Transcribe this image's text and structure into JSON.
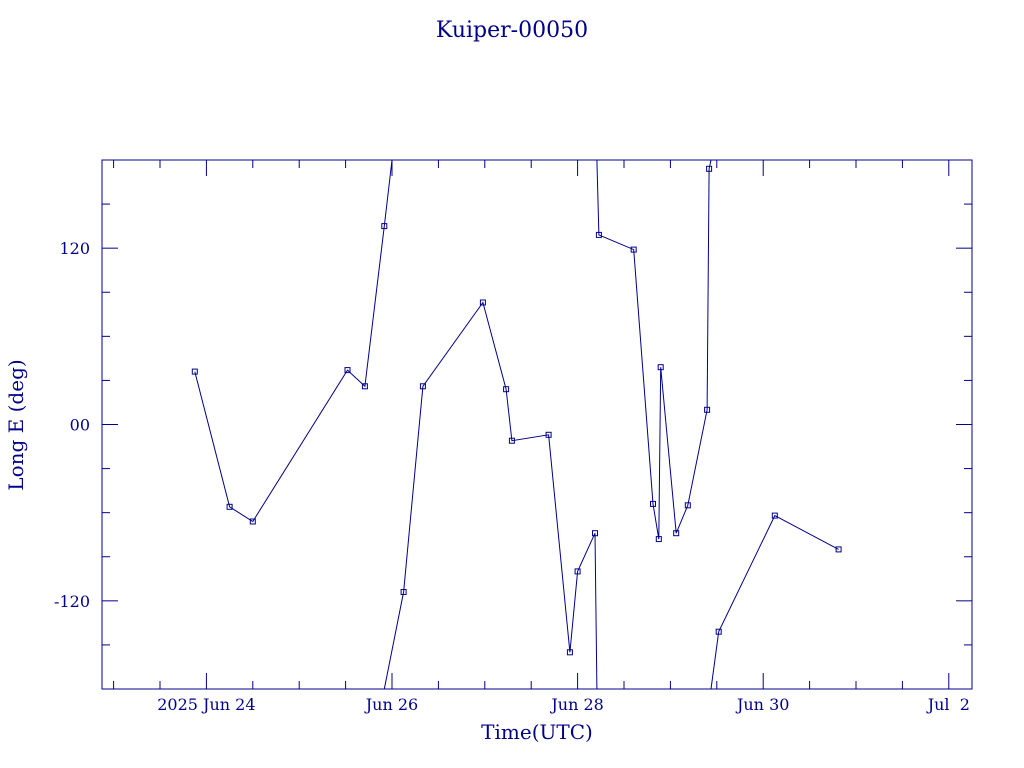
{
  "chart_data": {
    "type": "line",
    "title": "Kuiper-00050",
    "xlabel": "Time(UTC)",
    "ylabel": "Long E (deg)",
    "x_range": [
      "2025-06-22T21:00",
      "2025-07-02T06:00"
    ],
    "ylim": [
      -180,
      180
    ],
    "x_ticks": [
      {
        "t": "2025-06-24T00:00",
        "label": "2025 Jun 24"
      },
      {
        "t": "2025-06-26T00:00",
        "label": "Jun 26"
      },
      {
        "t": "2025-06-28T00:00",
        "label": "Jun 28"
      },
      {
        "t": "2025-06-30T00:00",
        "label": "Jun 30"
      },
      {
        "t": "2025-07-02T00:00",
        "label": "Jul  2"
      }
    ],
    "x_minor_step_hours": 12,
    "y_ticks": [
      {
        "v": 120,
        "label": "120"
      },
      {
        "v": 0,
        "label": "00"
      },
      {
        "v": -120,
        "label": "-120"
      }
    ],
    "y_minor_step": 30,
    "grid": false,
    "series": [
      {
        "color": "#00008b",
        "points": [
          {
            "t": "2025-06-23T21:00",
            "v": 36
          },
          {
            "t": "2025-06-24T06:00",
            "v": -56
          },
          {
            "t": "2025-06-24T12:00",
            "v": -66
          },
          {
            "t": "2025-06-25T12:30",
            "v": 37
          },
          {
            "t": "2025-06-25T17:00",
            "v": 26
          },
          {
            "t": "2025-06-25T22:00",
            "v": 135
          },
          {
            "t": "2025-06-26T00:00",
            "v": 180,
            "break_after": true
          },
          {
            "t": "2025-06-25T22:00",
            "v": -180
          },
          {
            "t": "2025-06-26T03:00",
            "v": -114
          },
          {
            "t": "2025-06-26T08:00",
            "v": 26
          },
          {
            "t": "2025-06-26T23:30",
            "v": 83
          },
          {
            "t": "2025-06-27T05:30",
            "v": 24
          },
          {
            "t": "2025-06-27T07:00",
            "v": -11
          },
          {
            "t": "2025-06-27T16:30",
            "v": -7
          },
          {
            "t": "2025-06-27T22:00",
            "v": -155
          },
          {
            "t": "2025-06-28T00:00",
            "v": -100
          },
          {
            "t": "2025-06-28T04:30",
            "v": -74
          },
          {
            "t": "2025-06-28T05:00",
            "v": -180,
            "break_after": true
          },
          {
            "t": "2025-06-28T05:00",
            "v": 180
          },
          {
            "t": "2025-06-28T05:30",
            "v": 129
          },
          {
            "t": "2025-06-28T14:30",
            "v": 119
          },
          {
            "t": "2025-06-28T19:30",
            "v": -54
          },
          {
            "t": "2025-06-28T21:00",
            "v": -78
          },
          {
            "t": "2025-06-28T21:30",
            "v": 39
          },
          {
            "t": "2025-06-29T01:30",
            "v": -74
          },
          {
            "t": "2025-06-29T04:30",
            "v": -55
          },
          {
            "t": "2025-06-29T09:30",
            "v": 10
          },
          {
            "t": "2025-06-29T10:00",
            "v": 174
          },
          {
            "t": "2025-06-29T10:30",
            "v": 180,
            "break_after": true
          },
          {
            "t": "2025-06-29T10:30",
            "v": -180
          },
          {
            "t": "2025-06-29T12:30",
            "v": -141
          },
          {
            "t": "2025-06-30T03:00",
            "v": -62
          },
          {
            "t": "2025-06-30T19:30",
            "v": -85
          }
        ],
        "marker_indices": [
          0,
          1,
          2,
          3,
          4,
          5,
          8,
          9,
          10,
          11,
          12,
          13,
          14,
          15,
          16,
          19,
          20,
          21,
          22,
          23,
          24,
          25,
          26,
          27,
          30,
          31,
          32
        ]
      }
    ]
  }
}
